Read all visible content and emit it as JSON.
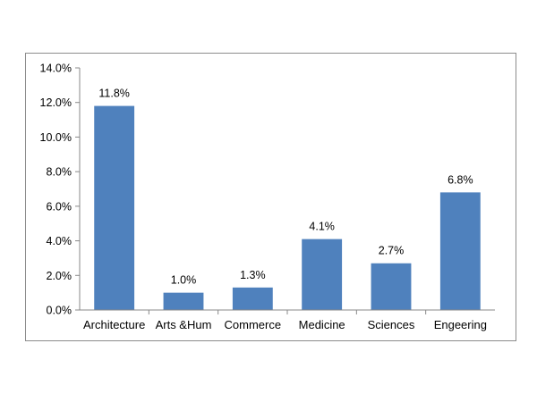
{
  "chart_data": {
    "type": "bar",
    "title": "",
    "xlabel": "",
    "ylabel": "",
    "categories": [
      "Architecture",
      "Arts &Hum",
      "Commerce",
      "Medicine",
      "Sciences",
      "Engeering"
    ],
    "values": [
      11.8,
      1.0,
      1.3,
      4.1,
      2.7,
      6.8
    ],
    "data_labels": [
      "11.8%",
      "1.0%",
      "1.3%",
      "4.1%",
      "2.7%",
      "6.8%"
    ],
    "ylim": [
      0,
      14
    ],
    "y_ticks": [
      0,
      2,
      4,
      6,
      8,
      10,
      12,
      14
    ],
    "y_tick_labels": [
      "0.0%",
      "2.0%",
      "4.0%",
      "6.0%",
      "8.0%",
      "10.0%",
      "12.0%",
      "14.0%"
    ],
    "grid": false,
    "legend": "none",
    "colors": {
      "bar": "#4f81bd",
      "axis": "#888888",
      "frame": "#8c8c8c"
    }
  }
}
